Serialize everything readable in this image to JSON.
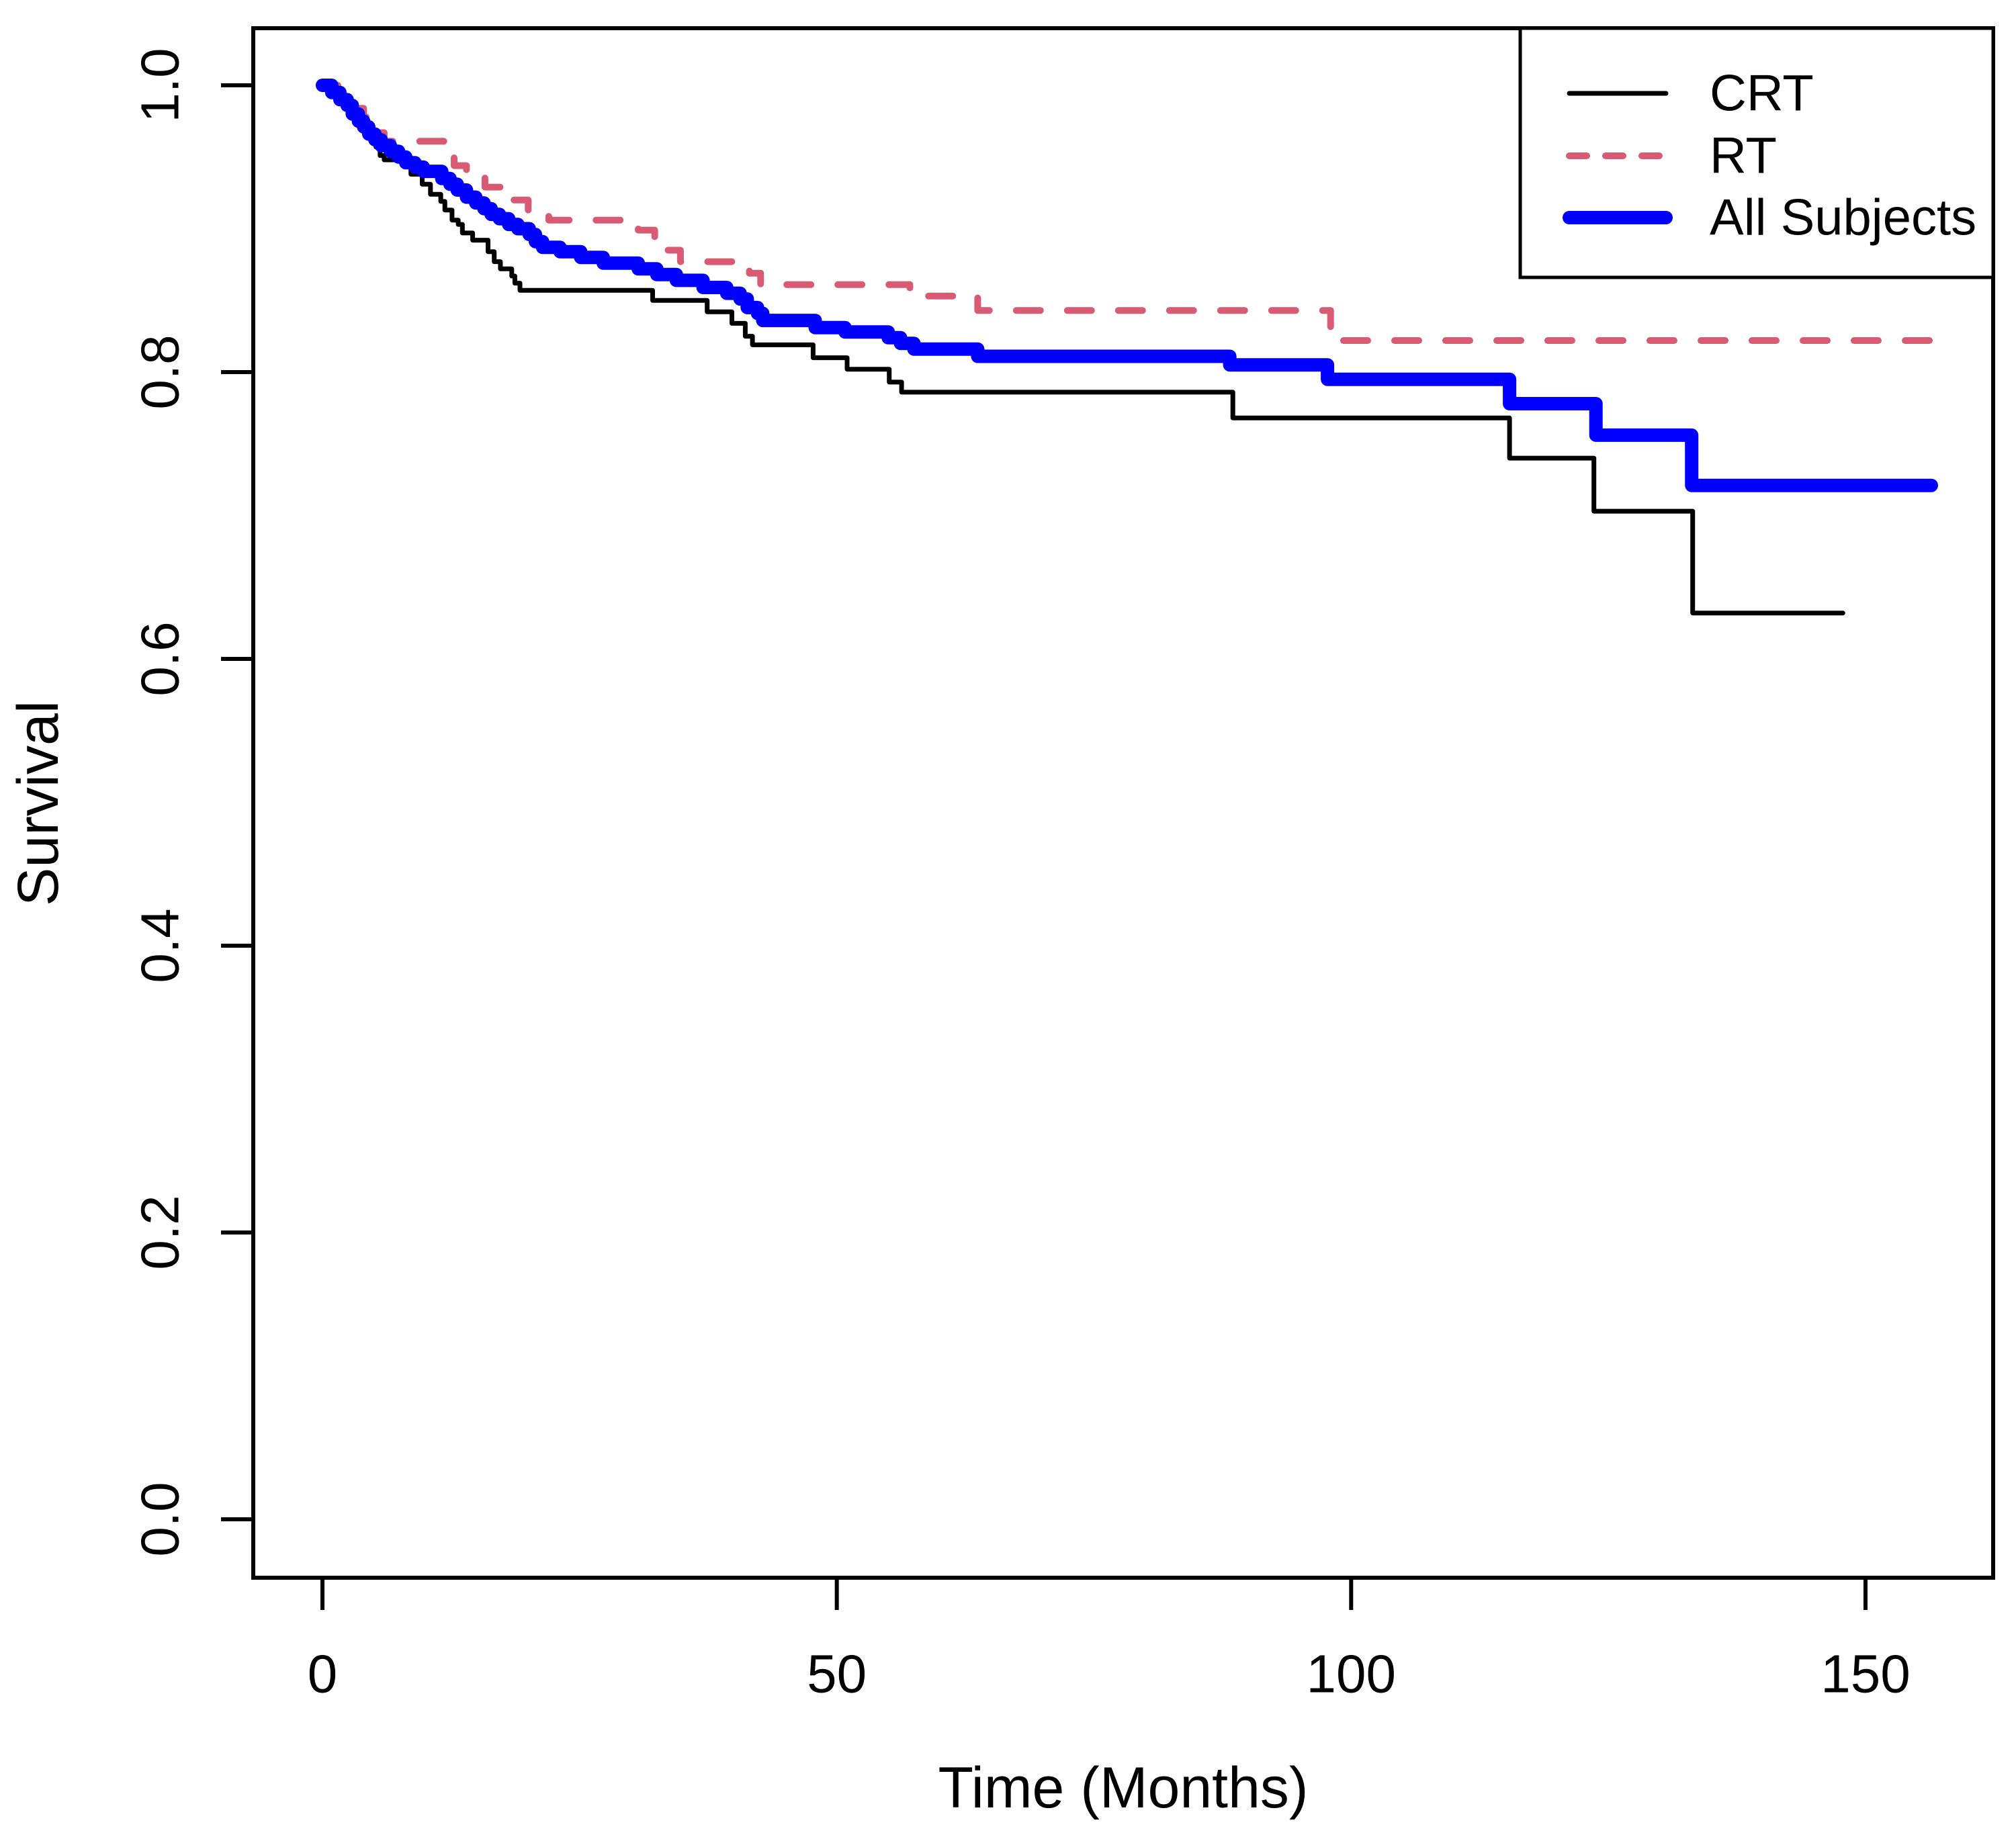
{
  "background_color": "#FFFFFF",
  "axis_color": "#000000",
  "chart_data": {
    "type": "line",
    "subtype": "kaplan-meier-step",
    "title": "",
    "xlabel": "Time (Months)",
    "ylabel": "Survival",
    "xlim": [
      0,
      160
    ],
    "ylim": [
      0,
      1
    ],
    "x_ticks": [
      0,
      50,
      100,
      150
    ],
    "x_tick_labels": [
      "0",
      "50",
      "100",
      "150"
    ],
    "y_ticks": [
      0.0,
      0.2,
      0.4,
      0.6,
      0.8,
      1.0
    ],
    "y_tick_labels": [
      "0.0",
      "0.2",
      "0.4",
      "0.6",
      "0.8",
      "1.0"
    ],
    "grid": false,
    "legend_position": "top-right",
    "legend_entries": [
      "CRT",
      "RT",
      "All Subjects"
    ],
    "series": [
      {
        "name": "CRT",
        "color": "#000000",
        "style": "solid",
        "line_width": 7,
        "points": [
          [
            0,
            1.0
          ],
          [
            1,
            0.995
          ],
          [
            1.8,
            0.99
          ],
          [
            2.4,
            0.984
          ],
          [
            2.8,
            0.979
          ],
          [
            3.3,
            0.973
          ],
          [
            3.9,
            0.968
          ],
          [
            4.7,
            0.962
          ],
          [
            5.2,
            0.957
          ],
          [
            5.6,
            0.951
          ],
          [
            6.0,
            0.948
          ],
          [
            8.2,
            0.944
          ],
          [
            8.6,
            0.938
          ],
          [
            9.7,
            0.931
          ],
          [
            10.5,
            0.924
          ],
          [
            11.5,
            0.919
          ],
          [
            11.9,
            0.913
          ],
          [
            12.6,
            0.906
          ],
          [
            13.2,
            0.903
          ],
          [
            13.6,
            0.897
          ],
          [
            14.6,
            0.892
          ],
          [
            16.1,
            0.884
          ],
          [
            16.7,
            0.877
          ],
          [
            17.3,
            0.872
          ],
          [
            18.4,
            0.867
          ],
          [
            18.7,
            0.862
          ],
          [
            19.2,
            0.857
          ],
          [
            32.1,
            0.85
          ],
          [
            37.4,
            0.842
          ],
          [
            39.8,
            0.834
          ],
          [
            41.1,
            0.825
          ],
          [
            41.8,
            0.819
          ],
          [
            47.7,
            0.81
          ],
          [
            51.0,
            0.802
          ],
          [
            55.1,
            0.793
          ],
          [
            56.3,
            0.786
          ],
          [
            88.5,
            0.768
          ],
          [
            115.4,
            0.74
          ],
          [
            123.6,
            0.703
          ],
          [
            133.2,
            0.632
          ],
          [
            147.8,
            0.632
          ]
        ]
      },
      {
        "name": "RT",
        "color": "#D95B73",
        "style": "dashed",
        "line_width": 10,
        "points": [
          [
            0,
            1.0
          ],
          [
            1.5,
            0.995
          ],
          [
            2.5,
            0.99
          ],
          [
            3.2,
            0.984
          ],
          [
            4.0,
            0.978
          ],
          [
            4.6,
            0.972
          ],
          [
            5.3,
            0.967
          ],
          [
            6.0,
            0.961
          ],
          [
            12.5,
            0.954
          ],
          [
            12.8,
            0.944
          ],
          [
            14.0,
            0.936
          ],
          [
            15.8,
            0.929
          ],
          [
            17.5,
            0.925
          ],
          [
            18.5,
            0.92
          ],
          [
            20.0,
            0.913
          ],
          [
            22.0,
            0.906
          ],
          [
            30.7,
            0.899
          ],
          [
            32.3,
            0.889
          ],
          [
            33.5,
            0.885
          ],
          [
            34.8,
            0.877
          ],
          [
            41.5,
            0.869
          ],
          [
            42.6,
            0.861
          ],
          [
            57.1,
            0.853
          ],
          [
            63.7,
            0.843
          ],
          [
            98.0,
            0.822
          ],
          [
            156.4,
            0.822
          ]
        ]
      },
      {
        "name": "All Subjects",
        "color": "#0000FF",
        "style": "solid",
        "line_width": 20,
        "points": [
          [
            0,
            1.0
          ],
          [
            0.9,
            0.995
          ],
          [
            1.7,
            0.99
          ],
          [
            2.4,
            0.986
          ],
          [
            2.9,
            0.98
          ],
          [
            3.5,
            0.975
          ],
          [
            4.0,
            0.971
          ],
          [
            4.5,
            0.966
          ],
          [
            5.1,
            0.962
          ],
          [
            5.7,
            0.958
          ],
          [
            6.6,
            0.954
          ],
          [
            7.4,
            0.95
          ],
          [
            8.1,
            0.946
          ],
          [
            9.0,
            0.943
          ],
          [
            9.8,
            0.94
          ],
          [
            11.6,
            0.935
          ],
          [
            12.4,
            0.931
          ],
          [
            13.1,
            0.927
          ],
          [
            14.0,
            0.922
          ],
          [
            14.9,
            0.918
          ],
          [
            15.7,
            0.914
          ],
          [
            16.4,
            0.91
          ],
          [
            17.2,
            0.907
          ],
          [
            18.1,
            0.903
          ],
          [
            19.0,
            0.9
          ],
          [
            20.1,
            0.896
          ],
          [
            20.7,
            0.891
          ],
          [
            21.4,
            0.887
          ],
          [
            23.1,
            0.884
          ],
          [
            25.1,
            0.88
          ],
          [
            27.3,
            0.876
          ],
          [
            30.7,
            0.872
          ],
          [
            32.5,
            0.868
          ],
          [
            34.4,
            0.864
          ],
          [
            37.0,
            0.859
          ],
          [
            39.3,
            0.855
          ],
          [
            40.6,
            0.851
          ],
          [
            41.3,
            0.845
          ],
          [
            42.3,
            0.841
          ],
          [
            42.8,
            0.836
          ],
          [
            47.9,
            0.831
          ],
          [
            50.8,
            0.828
          ],
          [
            55.0,
            0.824
          ],
          [
            56.2,
            0.82
          ],
          [
            57.5,
            0.816
          ],
          [
            63.7,
            0.811
          ],
          [
            88.2,
            0.805
          ],
          [
            97.7,
            0.795
          ],
          [
            115.4,
            0.778
          ],
          [
            123.8,
            0.756
          ],
          [
            133.1,
            0.721
          ],
          [
            156.4,
            0.721
          ]
        ]
      }
    ]
  }
}
